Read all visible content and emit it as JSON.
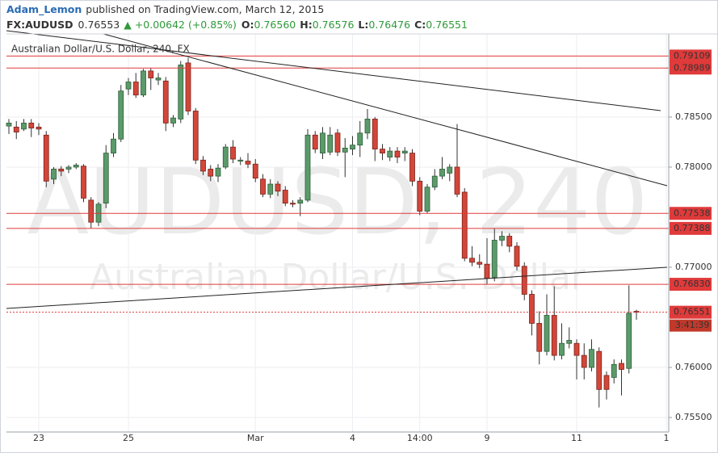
{
  "header": {
    "author": "Adam_Lemon",
    "published": "published on TradingView.com, March 12, 2015",
    "quote": {
      "symbol": "FX:AUDUSD",
      "last": "0.76553",
      "change": "▲ +0.00642 (+0.85%)",
      "fields": [
        {
          "label": "O:",
          "value": "0.76560"
        },
        {
          "label": "H:",
          "value": "0.76576"
        },
        {
          "label": "L:",
          "value": "0.76476"
        },
        {
          "label": "C:",
          "value": "0.76551"
        }
      ]
    }
  },
  "chart_data": {
    "type": "candlestick",
    "title": "Australian Dollar/U.S. Dollar, 240, FX",
    "watermark": [
      "AUDUSD, 240",
      "Australian Dollar/U.S. Dollar"
    ],
    "categories": [
      null,
      null,
      null,
      null,
      "23",
      null,
      null,
      null,
      null,
      null,
      null,
      null,
      null,
      null,
      null,
      null,
      "25",
      null,
      null,
      null,
      null,
      null,
      null,
      null,
      null,
      null,
      null,
      null,
      null,
      null,
      null,
      null,
      null,
      "Mar",
      null,
      null,
      null,
      null,
      null,
      null,
      null,
      null,
      null,
      null,
      null,
      null,
      "4",
      null,
      null,
      null,
      null,
      null,
      null,
      null,
      null,
      "14:00",
      null,
      null,
      null,
      null,
      null,
      null,
      null,
      null,
      "9",
      null,
      null,
      null,
      null,
      null,
      null,
      null,
      null,
      null,
      null,
      null,
      "11",
      null,
      null,
      null,
      null,
      null,
      null,
      null,
      null,
      null,
      null,
      null,
      "1"
    ],
    "open": [
      0.7841,
      0.784,
      0.7838,
      0.7844,
      0.784,
      0.7832,
      0.7788,
      0.7798,
      0.7798,
      0.78,
      0.7801,
      0.7767,
      0.7745,
      0.7764,
      0.7814,
      0.7828,
      0.7878,
      0.7885,
      0.7872,
      0.7896,
      0.7887,
      0.7886,
      0.7844,
      0.7848,
      0.7904,
      0.7856,
      0.7807,
      0.7798,
      0.7791,
      0.78,
      0.782,
      0.7806,
      0.7806,
      0.7803,
      0.7788,
      0.7773,
      0.7783,
      0.7777,
      0.7764,
      0.7764,
      0.7767,
      0.7832,
      0.7814,
      0.7815,
      0.7834,
      0.7815,
      0.7818,
      0.7822,
      0.7834,
      0.7848,
      0.7818,
      0.781,
      0.7816,
      0.7814,
      0.7814,
      0.7786,
      0.7756,
      0.778,
      0.7791,
      0.7794,
      0.78,
      0.7775,
      0.7709,
      0.7705,
      0.7703,
      0.769,
      0.7727,
      0.7731,
      0.7721,
      0.7701,
      0.7673,
      0.7644,
      0.7616,
      0.7652,
      0.7612,
      0.7624,
      0.7624,
      0.7612,
      0.76,
      0.7616,
      0.7592,
      0.759,
      0.7604,
      0.7599,
      0.7656,
      null,
      null,
      null,
      null
    ],
    "high": [
      0.7848,
      0.7846,
      0.7848,
      0.7848,
      0.7844,
      0.7836,
      0.78,
      0.7801,
      0.7802,
      0.7804,
      0.7803,
      0.777,
      0.7765,
      0.7822,
      0.7834,
      0.7882,
      0.7889,
      0.7894,
      0.7898,
      0.7899,
      0.7894,
      0.789,
      0.7852,
      0.7906,
      0.7909,
      0.7859,
      0.7811,
      0.7802,
      0.7803,
      0.7823,
      0.7827,
      0.781,
      0.7814,
      0.7808,
      0.7793,
      0.7788,
      0.7786,
      0.7781,
      0.7767,
      0.777,
      0.7838,
      0.7836,
      0.784,
      0.784,
      0.7838,
      0.7829,
      0.7831,
      0.7846,
      0.7858,
      0.785,
      0.7823,
      0.782,
      0.782,
      0.782,
      0.7818,
      0.779,
      0.7783,
      0.7798,
      0.781,
      0.7803,
      0.7843,
      0.7779,
      0.7721,
      0.7713,
      0.7729,
      0.7739,
      0.7736,
      0.7734,
      0.7725,
      0.7705,
      0.7677,
      0.7656,
      0.7673,
      0.7681,
      0.7644,
      0.764,
      0.7628,
      0.7624,
      0.7628,
      0.762,
      0.7596,
      0.7608,
      0.7608,
      0.7682,
      0.76576,
      null,
      null,
      null,
      null
    ],
    "low": [
      0.7833,
      0.7828,
      0.7836,
      0.783,
      0.7832,
      0.778,
      0.7783,
      0.7791,
      0.7794,
      0.7798,
      0.7765,
      0.7739,
      0.7741,
      0.7759,
      0.781,
      0.7825,
      0.7872,
      0.7869,
      0.787,
      0.7877,
      0.7882,
      0.7836,
      0.784,
      0.7844,
      0.7852,
      0.7803,
      0.7792,
      0.7786,
      0.7785,
      0.7798,
      0.7804,
      0.7802,
      0.7799,
      0.7785,
      0.777,
      0.7769,
      0.7771,
      0.7761,
      0.776,
      0.7751,
      0.7765,
      0.7814,
      0.7808,
      0.7812,
      0.7811,
      0.779,
      0.7812,
      0.781,
      0.7828,
      0.7806,
      0.7807,
      0.7806,
      0.7804,
      0.7806,
      0.7781,
      0.7752,
      0.7754,
      0.7777,
      0.7788,
      0.7786,
      0.777,
      0.7706,
      0.7701,
      0.7699,
      0.7683,
      0.7686,
      0.7721,
      0.7715,
      0.7697,
      0.7667,
      0.7632,
      0.7603,
      0.7612,
      0.7607,
      0.7608,
      0.7619,
      0.7588,
      0.7588,
      0.7596,
      0.756,
      0.7568,
      0.7584,
      0.7572,
      0.7594,
      0.76476,
      null,
      null,
      null,
      null
    ],
    "close": [
      0.7844,
      0.7835,
      0.7844,
      0.7839,
      0.7838,
      0.7786,
      0.7798,
      0.7796,
      0.78,
      0.7802,
      0.7769,
      0.7745,
      0.7763,
      0.7814,
      0.7828,
      0.7876,
      0.7885,
      0.7872,
      0.7896,
      0.7889,
      0.7889,
      0.7844,
      0.7849,
      0.7902,
      0.7856,
      0.7807,
      0.7796,
      0.7791,
      0.7799,
      0.782,
      0.7808,
      0.7807,
      0.7803,
      0.7789,
      0.7773,
      0.7783,
      0.7776,
      0.7764,
      0.7763,
      0.7767,
      0.7832,
      0.7818,
      0.7834,
      0.7832,
      0.7815,
      0.7819,
      0.7822,
      0.7834,
      0.7848,
      0.7818,
      0.7814,
      0.7816,
      0.781,
      0.7816,
      0.7786,
      0.7756,
      0.778,
      0.7791,
      0.7798,
      0.78,
      0.7773,
      0.7709,
      0.7705,
      0.7703,
      0.7689,
      0.7727,
      0.7731,
      0.7721,
      0.7701,
      0.7673,
      0.7644,
      0.7616,
      0.7652,
      0.7612,
      0.7624,
      0.7627,
      0.7612,
      0.76,
      0.7618,
      0.7578,
      0.7578,
      0.7603,
      0.7598,
      0.7654,
      0.76551,
      null,
      null,
      null,
      null
    ],
    "up_color": "#5b9a6a",
    "down_color": "#d3463a",
    "ylim": [
      0.75355,
      0.7933
    ],
    "yticks": [
      {
        "value": 0.755,
        "label": "0.75500"
      },
      {
        "value": 0.76,
        "label": "0.76000"
      },
      {
        "value": 0.77,
        "label": "0.77000"
      },
      {
        "value": 0.78,
        "label": "0.78000"
      },
      {
        "value": 0.785,
        "label": "0.78500"
      }
    ],
    "levels": [
      0.79109,
      0.78989,
      0.77538,
      0.77388,
      {
        "value": 0.7683,
        "label": "0.76830"
      }
    ],
    "level_color": "#e03a3a",
    "last_price": 0.76551,
    "countdown": "3:41:39",
    "grid": true
  }
}
